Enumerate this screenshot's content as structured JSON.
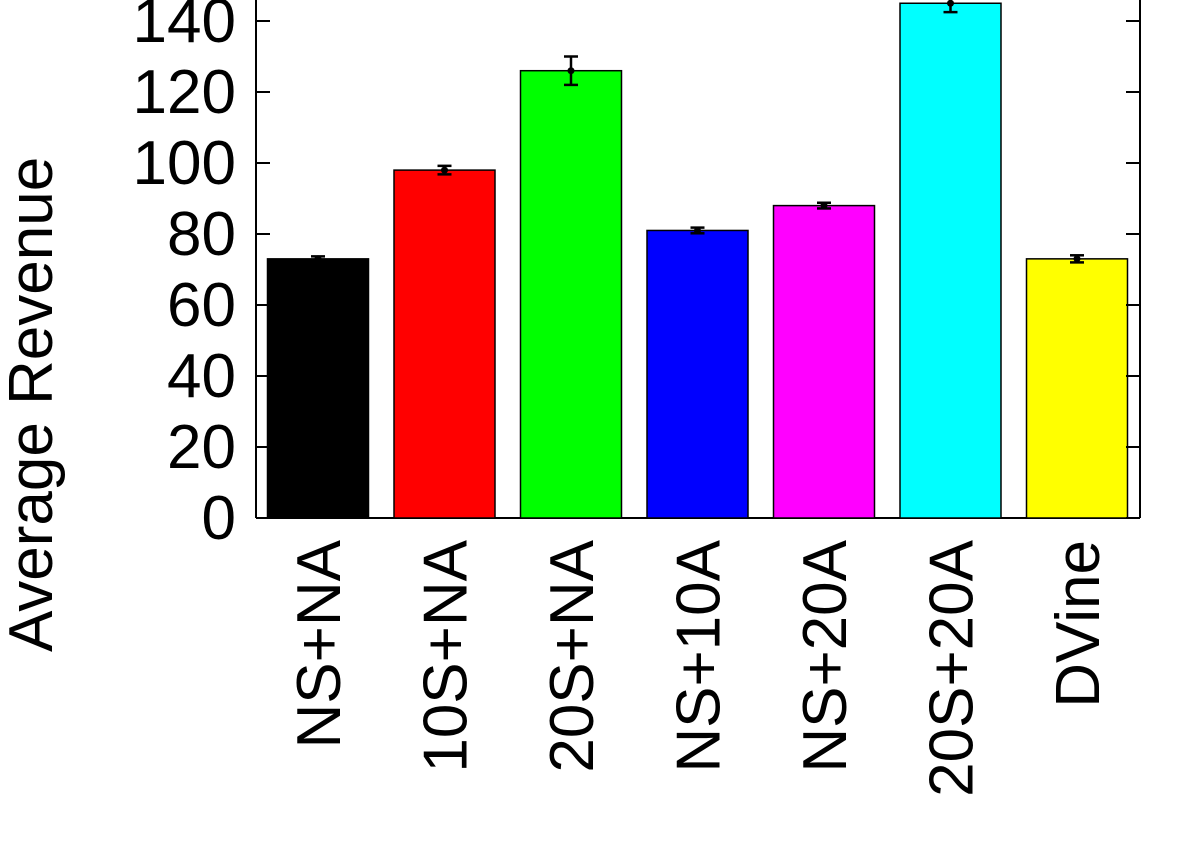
{
  "chart_data": {
    "type": "bar",
    "title": "",
    "xlabel": "",
    "ylabel": "Average Revenue",
    "categories": [
      "NS+NA",
      "10S+NA",
      "20S+NA",
      "NS+10A",
      "NS+20A",
      "20S+20A",
      "DVine"
    ],
    "values": [
      73,
      98,
      126,
      81,
      88,
      145,
      73
    ],
    "error": [
      0.7,
      1.2,
      4.0,
      0.8,
      0.8,
      2.5,
      1.0
    ],
    "colors": [
      "#000000",
      "#ff0000",
      "#00ff00",
      "#0000ff",
      "#ff00ff",
      "#00ffff",
      "#ffff00"
    ],
    "yticks": [
      0,
      20,
      40,
      60,
      80,
      100,
      120,
      140
    ],
    "ylim": [
      0,
      150
    ],
    "grid": false,
    "legend": "none"
  }
}
